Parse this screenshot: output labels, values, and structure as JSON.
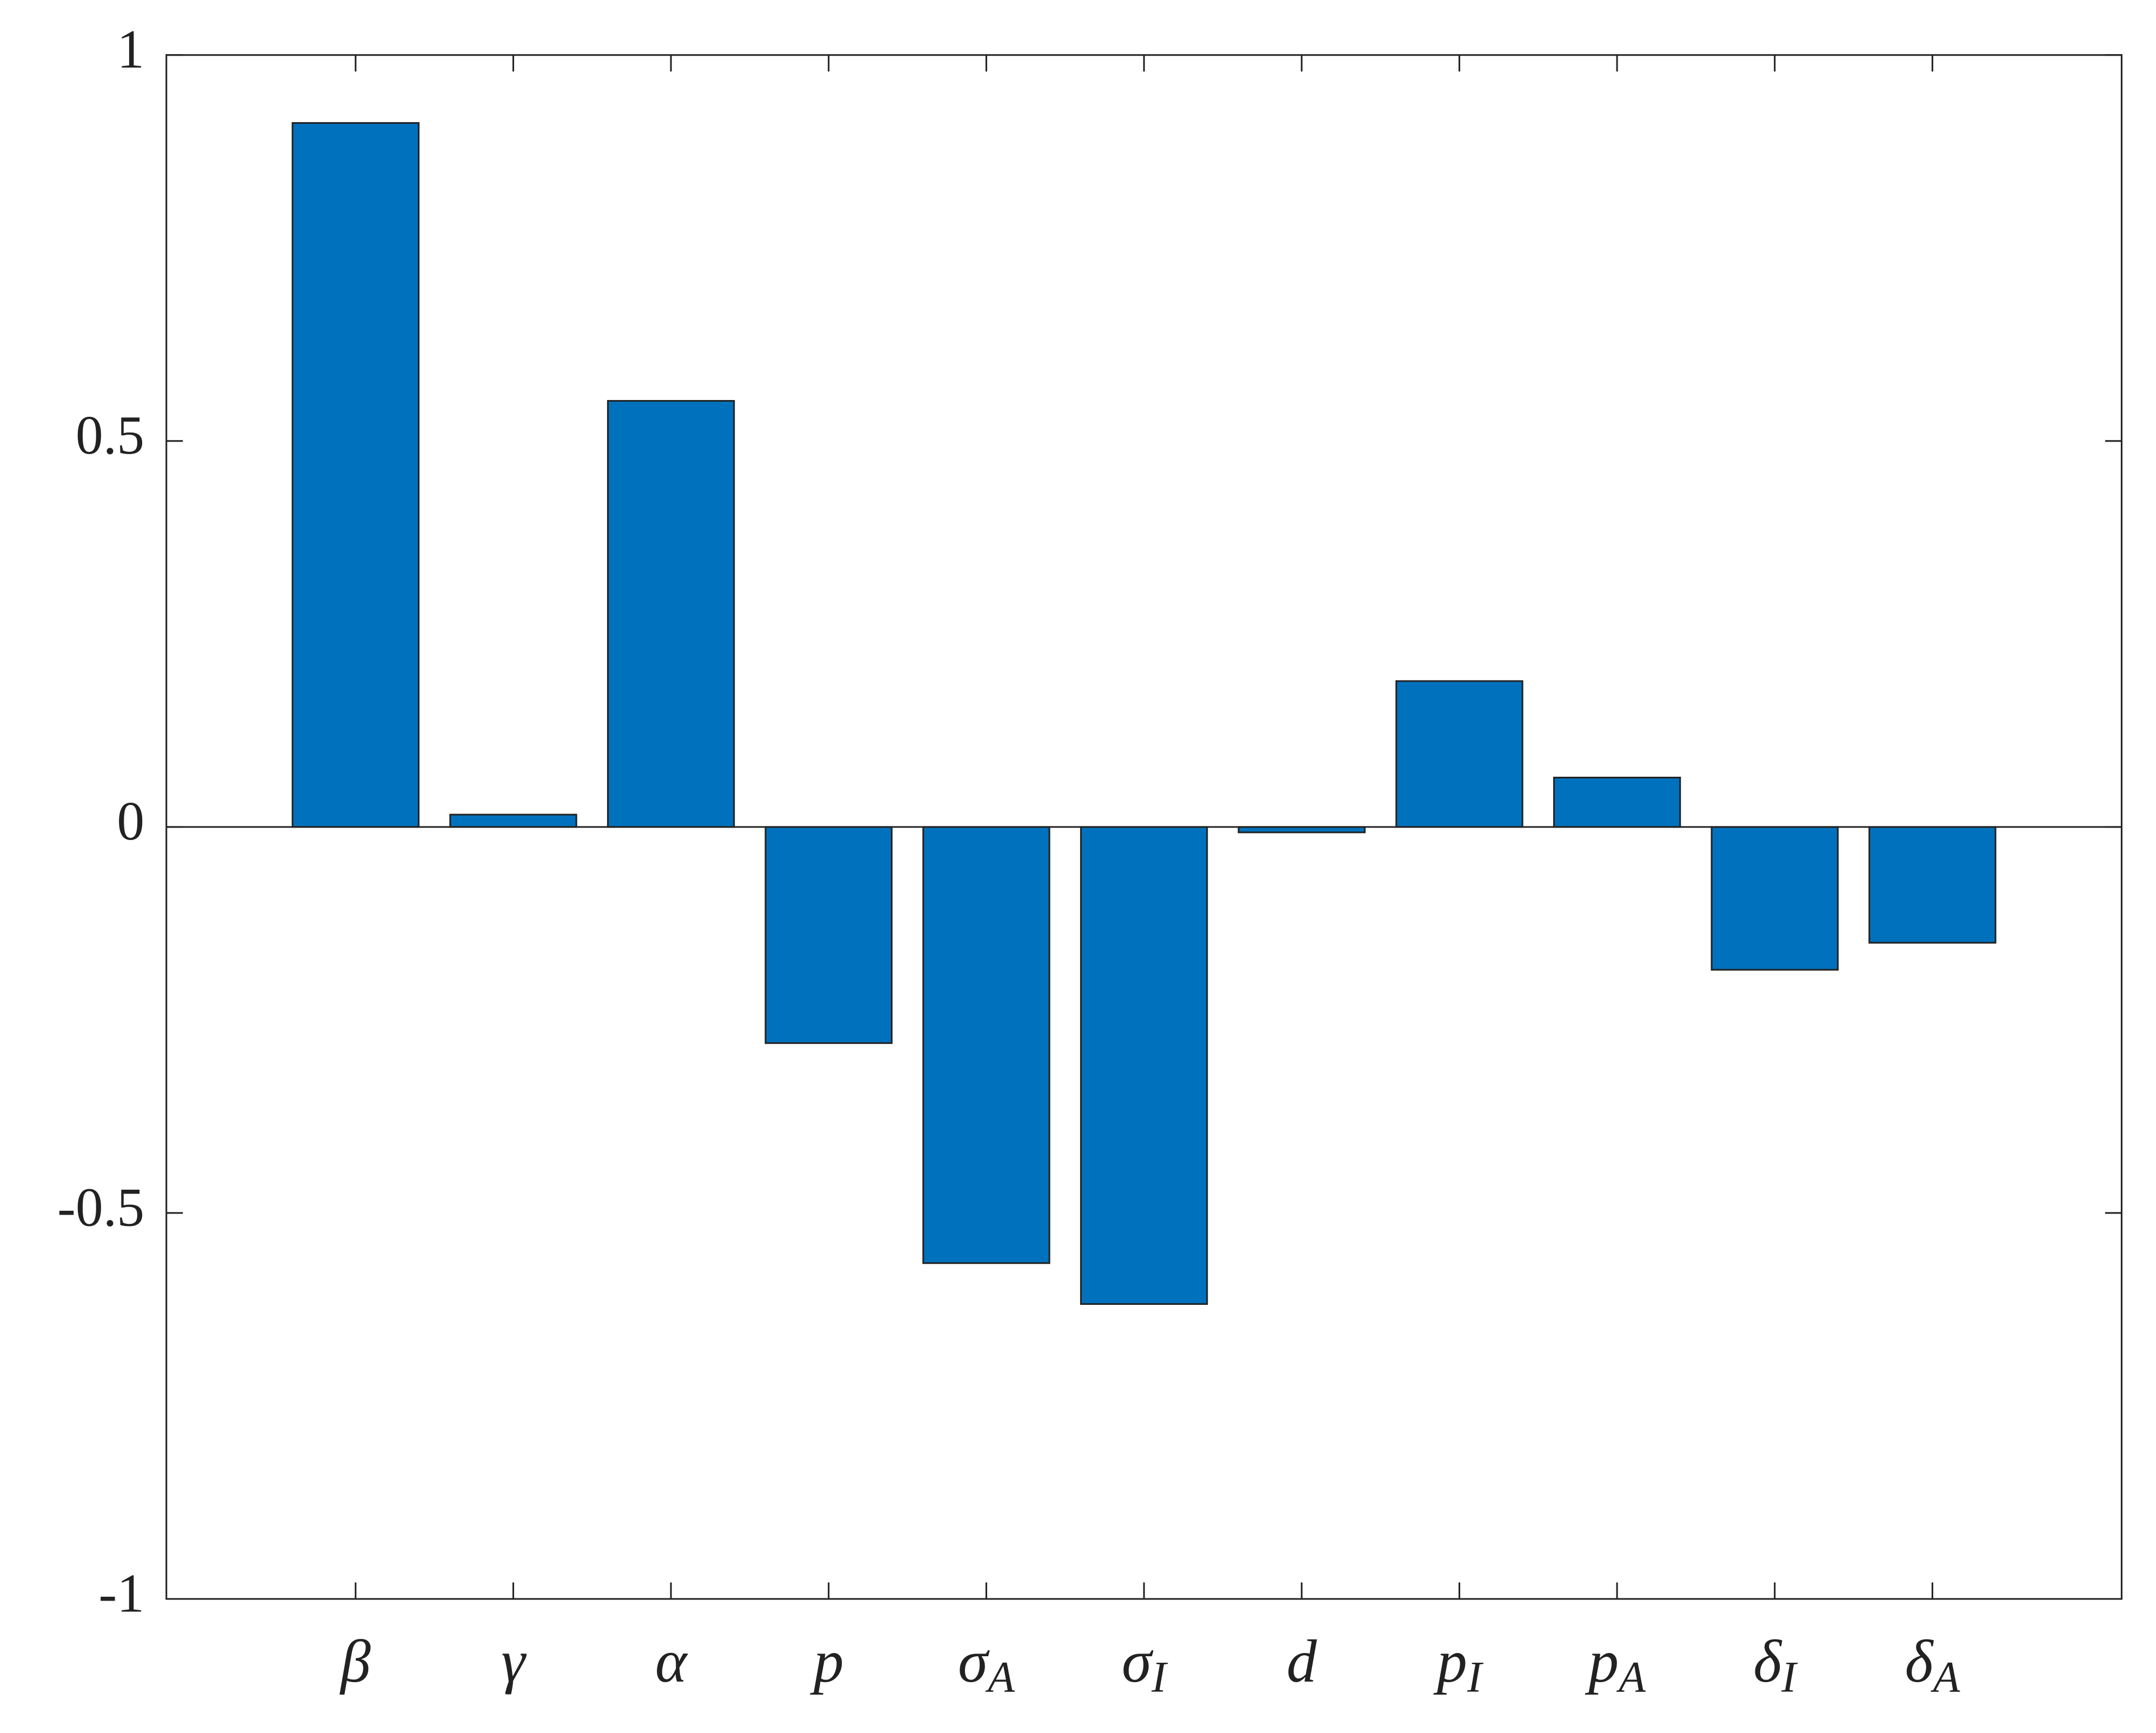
{
  "chart_data": {
    "type": "bar",
    "categories": [
      "β",
      "γ",
      "α",
      "p",
      "σA",
      "σI",
      "d",
      "pI",
      "pA",
      "δI",
      "δA"
    ],
    "values": [
      0.912,
      0.016,
      0.552,
      -0.28,
      -0.565,
      -0.618,
      -0.007,
      0.189,
      0.064,
      -0.185,
      -0.15
    ],
    "color": "#0072bd",
    "ylim": [
      -1,
      1
    ],
    "yticks": [
      -1,
      -0.5,
      0,
      0.5,
      1
    ],
    "grid": false
  }
}
